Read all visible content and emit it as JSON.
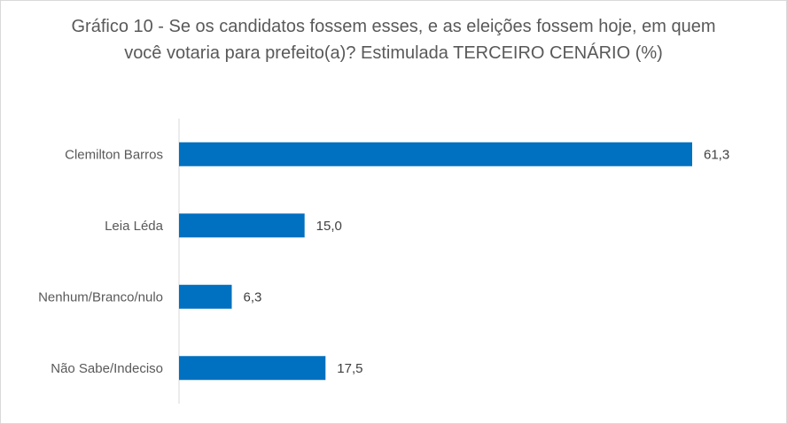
{
  "chart_data": {
    "type": "bar",
    "orientation": "horizontal",
    "title": "Gráfico 10 - Se os candidatos fossem esses, e as eleições fossem hoje, em quem você votaria para prefeito(a)? Estimulada TERCEIRO CENÁRIO (%)",
    "categories": [
      "Clemilton Barros",
      "Leia Léda",
      "Nenhum/Branco/nulo",
      "Não Sabe/Indeciso"
    ],
    "values": [
      61.3,
      15.0,
      6.3,
      17.5
    ],
    "value_labels": [
      "61,3",
      "15,0",
      "6,3",
      "17,5"
    ],
    "xlim": [
      0,
      70
    ],
    "grid": false,
    "legend": "none",
    "bar_color": "#0070C0"
  }
}
